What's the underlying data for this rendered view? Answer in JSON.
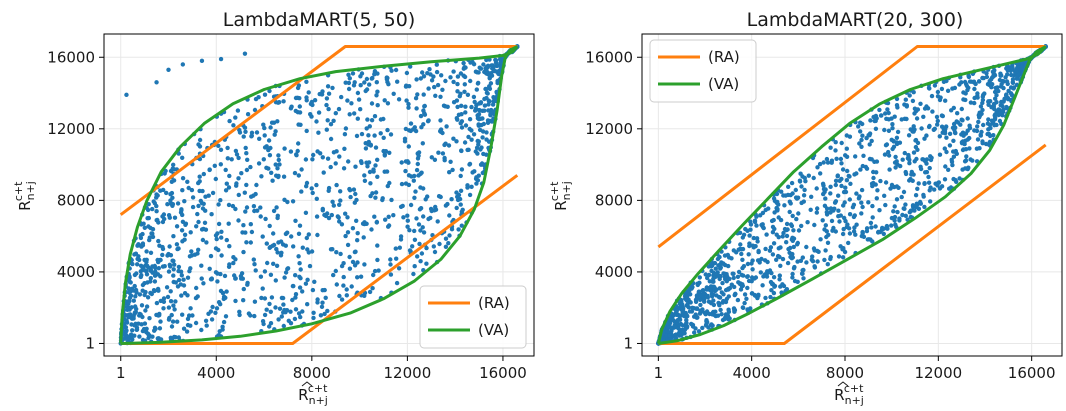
{
  "chart_data": [
    {
      "type": "scatter",
      "title": "LambdaMART(5, 50)",
      "xlabel_html": "R̂ with superscript c+t, subscript n+j",
      "xlim": [
        -700,
        17300
      ],
      "ylim": [
        -700,
        17300
      ],
      "xticks": [
        1,
        4000,
        8000,
        12000,
        16000
      ],
      "yticks": [
        1,
        4000,
        8000,
        12000,
        16000
      ],
      "grid": true,
      "legend_position": "lower right",
      "series": [
        {
          "name": "(RA)",
          "color": "#ff7f0e",
          "upper": [
            [
              1,
              7200
            ],
            [
              9400,
              16600
            ],
            [
              16600,
              16600
            ]
          ],
          "lower": [
            [
              1,
              1
            ],
            [
              7200,
              1
            ],
            [
              16600,
              9400
            ]
          ]
        },
        {
          "name": "(VA)",
          "color": "#2ca02c",
          "upper": [
            [
              1,
              1
            ],
            [
              60,
              1600
            ],
            [
              200,
              3400
            ],
            [
              400,
              5000
            ],
            [
              700,
              6500
            ],
            [
              1100,
              8000
            ],
            [
              1700,
              9600
            ],
            [
              2500,
              11000
            ],
            [
              3500,
              12300
            ],
            [
              4700,
              13400
            ],
            [
              6000,
              14200
            ],
            [
              7500,
              14800
            ],
            [
              9000,
              15200
            ],
            [
              11000,
              15500
            ],
            [
              13000,
              15750
            ],
            [
              15000,
              15950
            ],
            [
              16000,
              16100
            ],
            [
              16400,
              16300
            ],
            [
              16600,
              16600
            ]
          ],
          "lower": [
            [
              1,
              1
            ],
            [
              1600,
              60
            ],
            [
              3400,
              200
            ],
            [
              5000,
              400
            ],
            [
              6500,
              700
            ],
            [
              8000,
              1100
            ],
            [
              9600,
              1700
            ],
            [
              11000,
              2500
            ],
            [
              12300,
              3500
            ],
            [
              13400,
              4700
            ],
            [
              14200,
              6000
            ],
            [
              14800,
              7500
            ],
            [
              15200,
              9000
            ],
            [
              15500,
              11000
            ],
            [
              15750,
              13000
            ],
            [
              15950,
              15000
            ],
            [
              16100,
              16000
            ],
            [
              16300,
              16400
            ],
            [
              16600,
              16600
            ]
          ]
        }
      ],
      "scatter_color": "#1f77b4",
      "scatter_points": 1600
    },
    {
      "type": "scatter",
      "title": "LambdaMART(20, 300)",
      "xlim": [
        -700,
        17300
      ],
      "ylim": [
        -700,
        17300
      ],
      "xticks": [
        1,
        4000,
        8000,
        12000,
        16000
      ],
      "yticks": [
        1,
        4000,
        8000,
        12000,
        16000
      ],
      "grid": true,
      "legend_position": "upper left",
      "series": [
        {
          "name": "(RA)",
          "color": "#ff7f0e",
          "upper": [
            [
              1,
              5400
            ],
            [
              11100,
              16600
            ],
            [
              16600,
              16600
            ]
          ],
          "lower": [
            [
              1,
              1
            ],
            [
              5400,
              1
            ],
            [
              16600,
              11100
            ]
          ]
        },
        {
          "name": "(VA)",
          "color": "#2ca02c",
          "upper": [
            [
              1,
              1
            ],
            [
              150,
              800
            ],
            [
              500,
              1800
            ],
            [
              1000,
              2800
            ],
            [
              1700,
              3900
            ],
            [
              2600,
              5200
            ],
            [
              3600,
              6600
            ],
            [
              4700,
              8100
            ],
            [
              5800,
              9600
            ],
            [
              7000,
              11000
            ],
            [
              8200,
              12300
            ],
            [
              9500,
              13400
            ],
            [
              10800,
              14200
            ],
            [
              12200,
              14800
            ],
            [
              13500,
              15200
            ],
            [
              14800,
              15600
            ],
            [
              15800,
              15900
            ],
            [
              16300,
              16200
            ],
            [
              16600,
              16600
            ]
          ],
          "lower": [
            [
              1,
              1
            ],
            [
              800,
              150
            ],
            [
              1800,
              500
            ],
            [
              2800,
              1000
            ],
            [
              3900,
              1700
            ],
            [
              5200,
              2600
            ],
            [
              6600,
              3600
            ],
            [
              8100,
              4700
            ],
            [
              9600,
              5800
            ],
            [
              11000,
              7000
            ],
            [
              12300,
              8200
            ],
            [
              13400,
              9500
            ],
            [
              14200,
              10800
            ],
            [
              14800,
              12200
            ],
            [
              15200,
              13500
            ],
            [
              15600,
              14800
            ],
            [
              15900,
              15800
            ],
            [
              16200,
              16300
            ],
            [
              16600,
              16600
            ]
          ]
        }
      ],
      "scatter_color": "#1f77b4",
      "scatter_points": 1600
    }
  ],
  "titles": [
    "LambdaMART(5, 50)",
    "LambdaMART(20, 300)"
  ],
  "tick_labels": [
    "1",
    "4000",
    "8000",
    "12000",
    "16000"
  ],
  "legend": {
    "ra": "(RA)",
    "va": "(VA)"
  }
}
